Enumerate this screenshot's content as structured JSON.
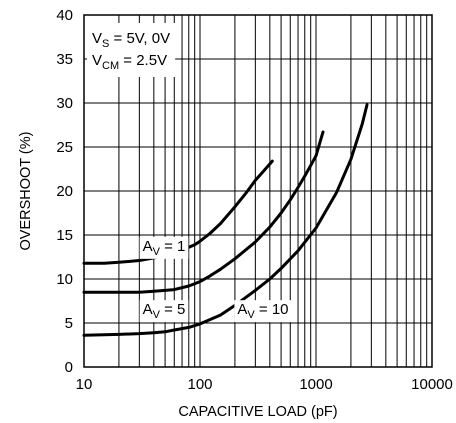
{
  "chart_data": {
    "type": "line",
    "xlabel": "CAPACITIVE LOAD (pF)",
    "ylabel": "OVERSHOOT (%)",
    "xscale": "log",
    "xlim": [
      10,
      10000
    ],
    "ylim": [
      0,
      40
    ],
    "xticks": [
      10,
      100,
      1000,
      10000
    ],
    "xtick_labels": [
      "10",
      "100",
      "1000",
      "10000"
    ],
    "yticks": [
      0,
      5,
      10,
      15,
      20,
      25,
      30,
      35,
      40
    ],
    "ytick_labels": [
      "0",
      "5",
      "10",
      "15",
      "20",
      "25",
      "30",
      "35",
      "40"
    ],
    "grid": true,
    "conditions": [
      {
        "main": "V",
        "sub": "S",
        "rest": " = 5V, 0V"
      },
      {
        "main": "V",
        "sub": "CM",
        "rest": " = 2.5V"
      }
    ],
    "series": [
      {
        "name_main": "A",
        "name_sub": "V",
        "name_rest": " = 1",
        "label_x": 32,
        "label_y": 13.2,
        "x": [
          10,
          15,
          20,
          30,
          40,
          50,
          60,
          70,
          80,
          90,
          100,
          120,
          150,
          200,
          250,
          300,
          350,
          420
        ],
        "y": [
          11.8,
          11.8,
          11.9,
          12.1,
          12.4,
          12.7,
          13.0,
          13.3,
          13.6,
          13.9,
          14.3,
          15.1,
          16.3,
          18.2,
          19.8,
          21.2,
          22.2,
          23.4
        ]
      },
      {
        "name_main": "A",
        "name_sub": "V",
        "name_rest": " = 5",
        "label_x": 32,
        "label_y": 6.0,
        "x": [
          10,
          15,
          20,
          30,
          40,
          50,
          60,
          80,
          100,
          120,
          150,
          200,
          300,
          400,
          500,
          600,
          700,
          800,
          900,
          1000,
          1150
        ],
        "y": [
          8.5,
          8.5,
          8.5,
          8.5,
          8.6,
          8.7,
          8.8,
          9.2,
          9.7,
          10.3,
          11.1,
          12.3,
          14.2,
          15.9,
          17.5,
          19.0,
          20.4,
          21.7,
          22.9,
          24.0,
          26.7
        ]
      },
      {
        "name_main": "A",
        "name_sub": "V",
        "name_rest": " = 10",
        "label_x": 210,
        "label_y": 6.0,
        "x": [
          10,
          20,
          30,
          40,
          50,
          60,
          80,
          100,
          150,
          200,
          300,
          400,
          500,
          700,
          1000,
          1500,
          2000,
          2500,
          2750
        ],
        "y": [
          3.6,
          3.7,
          3.8,
          3.9,
          4.0,
          4.2,
          4.5,
          4.9,
          5.9,
          7.0,
          8.7,
          10.0,
          11.2,
          13.2,
          15.8,
          19.8,
          23.6,
          27.6,
          29.8
        ]
      }
    ]
  }
}
